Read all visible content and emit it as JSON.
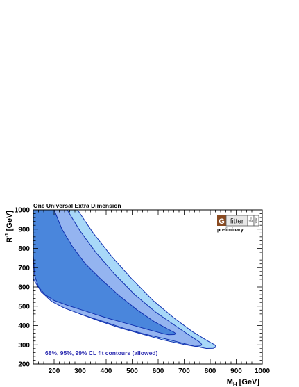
{
  "chart_data": {
    "type": "contour",
    "title": "One Universal Extra Dimension",
    "xlabel": "M",
    "xlabel_sub": "H",
    "xlabel_unit": "[GeV]",
    "ylabel": "R",
    "ylabel_sup": "-1",
    "ylabel_unit": "[GeV]",
    "xlim": [
      120,
      1000
    ],
    "ylim": [
      200,
      1000
    ],
    "xticks": [
      200,
      300,
      400,
      500,
      600,
      700,
      800,
      900,
      1000
    ],
    "yticks": [
      200,
      300,
      400,
      500,
      600,
      700,
      800,
      900,
      1000
    ],
    "contours": [
      {
        "level": "99% CL",
        "color": "#a8d8f8",
        "upper": [
          [
            290,
            1000
          ],
          [
            350,
            880
          ],
          [
            420,
            760
          ],
          [
            500,
            640
          ],
          [
            580,
            530
          ],
          [
            660,
            440
          ],
          [
            730,
            370
          ],
          [
            790,
            320
          ],
          [
            818,
            300
          ],
          [
            822,
            288
          ],
          [
            812,
            282
          ],
          [
            785,
            281
          ]
        ],
        "lower": [
          [
            120,
            690
          ],
          [
            150,
            600
          ],
          [
            185,
            540
          ],
          [
            230,
            500
          ],
          [
            300,
            460
          ],
          [
            380,
            420
          ],
          [
            460,
            385
          ],
          [
            540,
            355
          ],
          [
            620,
            325
          ],
          [
            700,
            302
          ],
          [
            760,
            288
          ],
          [
            785,
            281
          ]
        ]
      },
      {
        "level": "95% CL",
        "color": "#94b4f0",
        "upper": [
          [
            250,
            1000
          ],
          [
            300,
            890
          ],
          [
            360,
            780
          ],
          [
            430,
            670
          ],
          [
            510,
            560
          ],
          [
            590,
            470
          ],
          [
            670,
            395
          ],
          [
            730,
            340
          ],
          [
            762,
            312
          ],
          [
            768,
            300
          ],
          [
            760,
            294
          ],
          [
            740,
            293
          ]
        ],
        "lower": [
          [
            120,
            640
          ],
          [
            150,
            575
          ],
          [
            190,
            525
          ],
          [
            240,
            490
          ],
          [
            310,
            455
          ],
          [
            390,
            420
          ],
          [
            470,
            385
          ],
          [
            550,
            355
          ],
          [
            630,
            330
          ],
          [
            690,
            310
          ],
          [
            740,
            293
          ]
        ]
      },
      {
        "level": "68% CL",
        "color": "#4a86dc",
        "upper": [
          [
            200,
            1000
          ],
          [
            230,
            900
          ],
          [
            270,
            810
          ],
          [
            320,
            720
          ],
          [
            380,
            640
          ],
          [
            450,
            555
          ],
          [
            520,
            480
          ],
          [
            585,
            420
          ],
          [
            635,
            383
          ],
          [
            660,
            366
          ],
          [
            668,
            358
          ],
          [
            662,
            353
          ],
          [
            640,
            352
          ]
        ],
        "lower": [
          [
            120,
            765
          ],
          [
            125,
            660
          ],
          [
            140,
            600
          ],
          [
            165,
            560
          ],
          [
            200,
            530
          ],
          [
            250,
            505
          ],
          [
            320,
            475
          ],
          [
            400,
            440
          ],
          [
            480,
            410
          ],
          [
            560,
            380
          ],
          [
            620,
            358
          ],
          [
            640,
            352
          ]
        ]
      }
    ],
    "legend_text": "68%, 95%, 99% CL fit contours (allowed)",
    "logo": {
      "letter": "G",
      "word": "fitter",
      "side_top": "B",
      "side_mid": "SM",
      "side_bottom": "www",
      "caption": "preliminary"
    },
    "grid": false
  }
}
